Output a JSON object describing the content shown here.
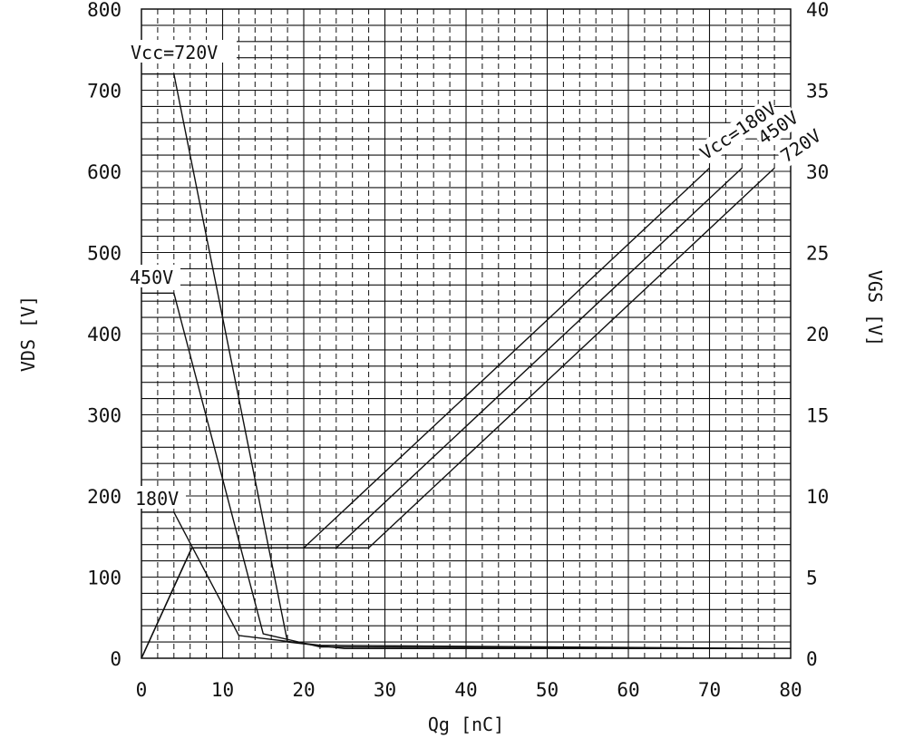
{
  "chart_data": {
    "type": "line",
    "xlabel": "Qg [nC]",
    "ylabel": "VDS [V]",
    "y2label": "VGS [V]",
    "xlim": [
      0,
      80
    ],
    "ylim": [
      0,
      800
    ],
    "y2lim": [
      0,
      40
    ],
    "x_ticks": [
      "0",
      "10",
      "20",
      "30",
      "40",
      "50",
      "60",
      "70",
      "80"
    ],
    "y_ticks": [
      "0",
      "100",
      "200",
      "300",
      "400",
      "500",
      "600",
      "700",
      "800"
    ],
    "y2_ticks": [
      "0",
      "5",
      "10",
      "15",
      "20",
      "25",
      "30",
      "35",
      "40"
    ],
    "grid": true,
    "series": [
      {
        "name": "Vcc=720V",
        "axis": "left",
        "x": [
          0,
          4,
          18,
          25,
          80
        ],
        "y": [
          720,
          720,
          20,
          12,
          12
        ]
      },
      {
        "name": "450V",
        "axis": "left",
        "x": [
          0,
          4,
          15,
          22,
          80
        ],
        "y": [
          450,
          450,
          30,
          14,
          12
        ]
      },
      {
        "name": "180V",
        "axis": "left",
        "x": [
          0,
          4,
          12,
          22,
          80
        ],
        "y": [
          180,
          180,
          28,
          16,
          12
        ]
      },
      {
        "name": "Vcc=180V",
        "axis": "right",
        "x": [
          0,
          6.2,
          20,
          70
        ],
        "y": [
          0,
          6.8,
          6.8,
          30.2
        ]
      },
      {
        "name": "450V",
        "axis": "right",
        "x": [
          0,
          6.2,
          24,
          74
        ],
        "y": [
          0,
          6.8,
          6.8,
          30.2
        ]
      },
      {
        "name": "720V",
        "axis": "right",
        "x": [
          0,
          6.2,
          28,
          78
        ],
        "y": [
          0,
          6.8,
          6.8,
          30.2
        ]
      }
    ],
    "annotations": {
      "vds_720": "Vcc=720V",
      "vds_450": "450V",
      "vds_180": "180V",
      "vgs_180": "Vcc=180V",
      "vgs_450": "450V",
      "vgs_720": "720V"
    }
  },
  "colors": {
    "line": "#111111",
    "background": "#ffffff"
  }
}
